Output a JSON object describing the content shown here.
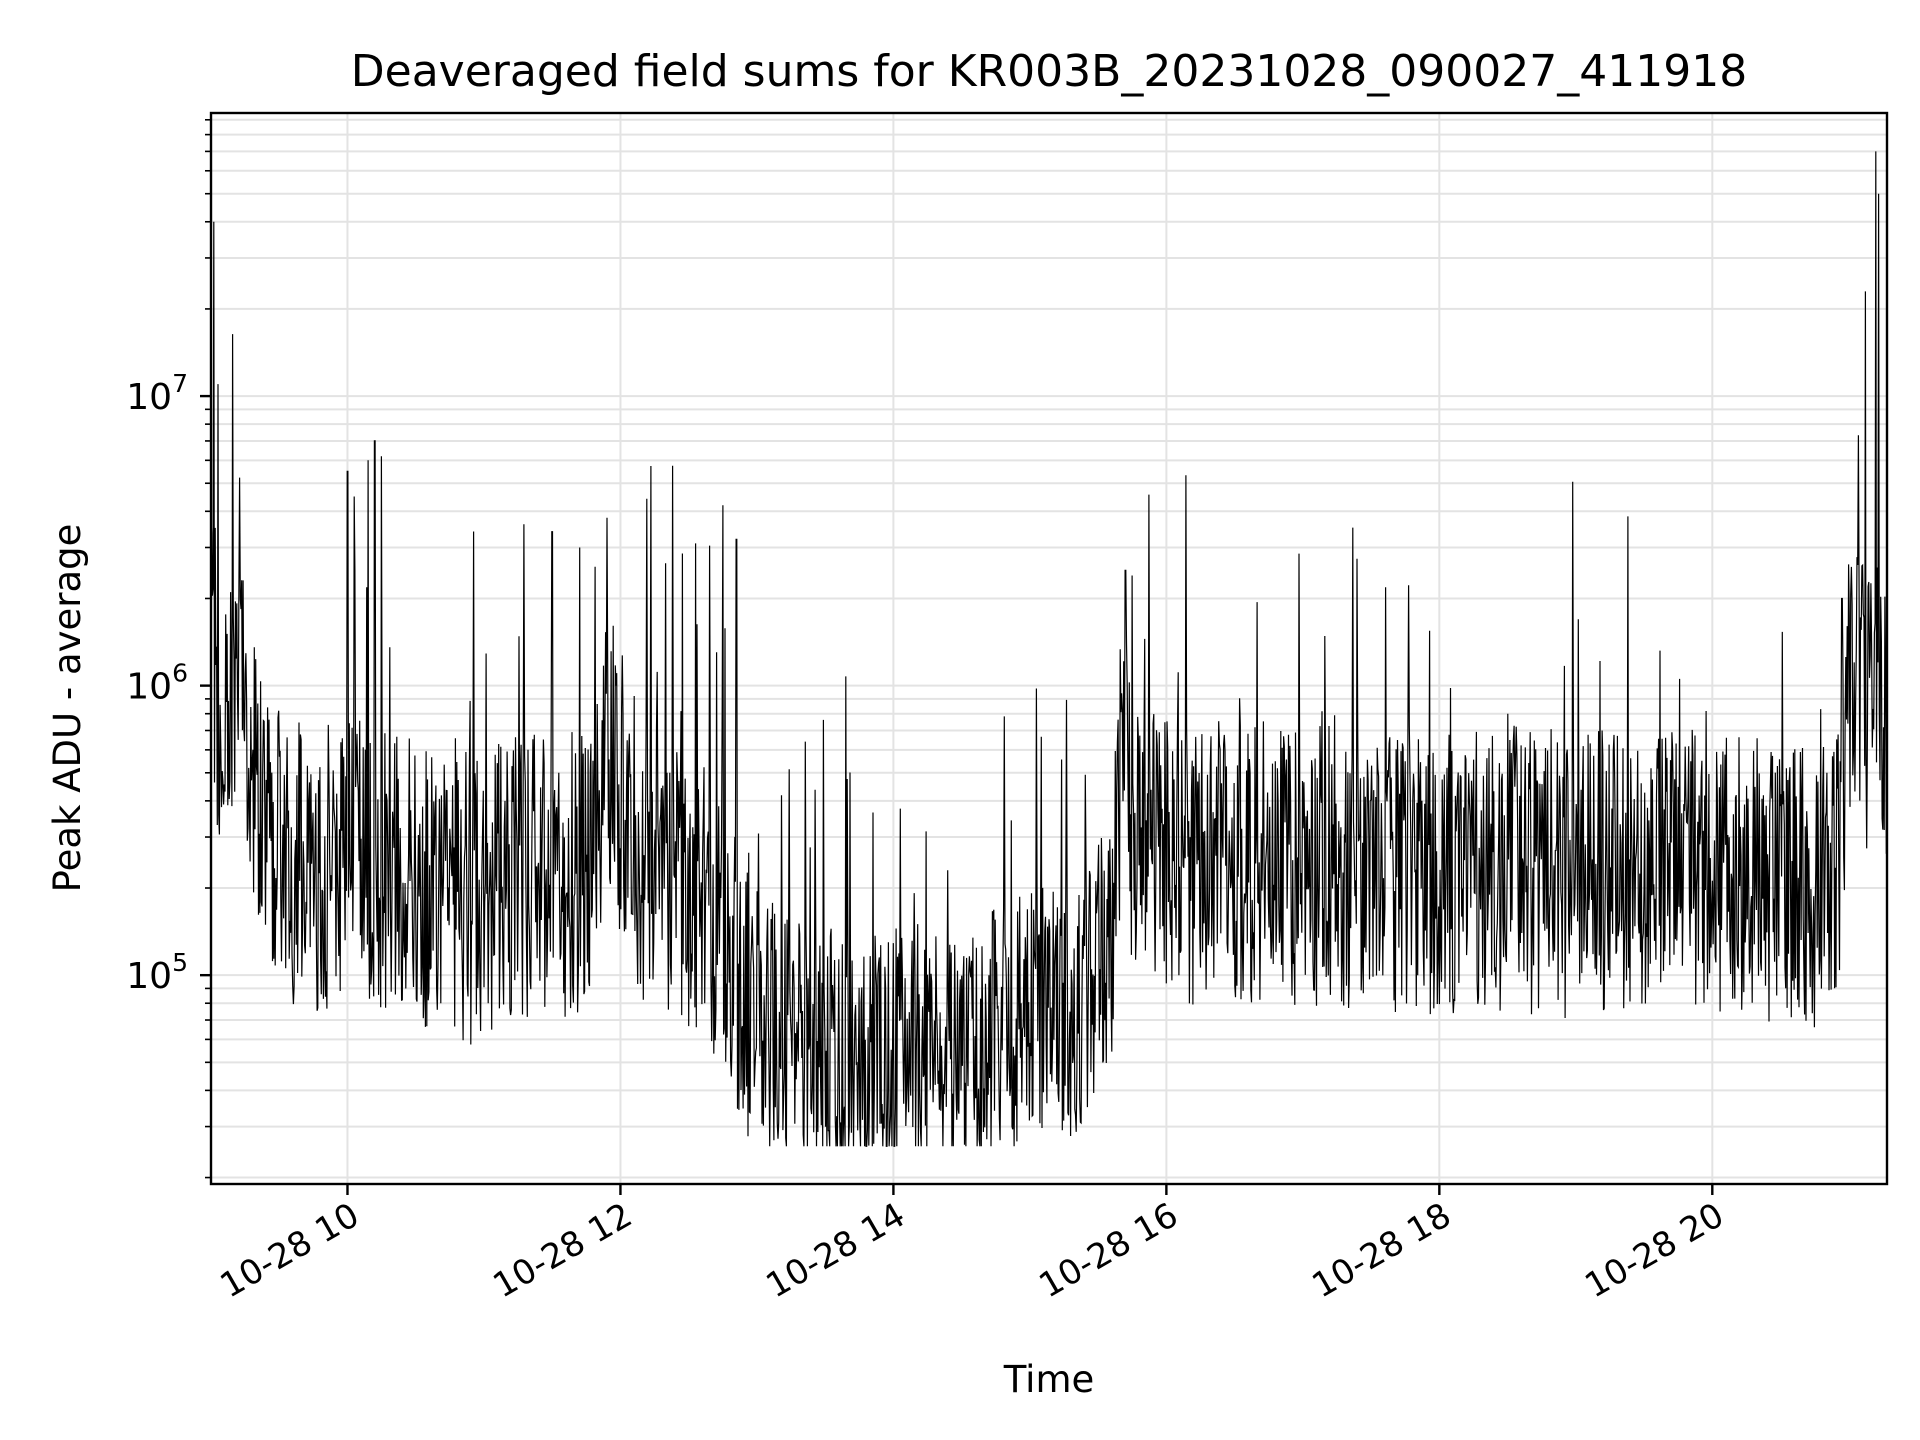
{
  "chart_data": {
    "type": "line",
    "title": "Deaveraged field sums for KR003B_20231028_090027_411918",
    "xlabel": "Time",
    "ylabel": "Peak ADU - average",
    "y_scale": "log",
    "ylim": [
      19000,
      95000000
    ],
    "xlim_hours": [
      9.0,
      21.28
    ],
    "x_tick_values_hours": [
      10,
      12,
      14,
      16,
      18,
      20
    ],
    "x_tick_labels": [
      "10-28 10",
      "10-28 12",
      "10-28 14",
      "10-28 16",
      "10-28 18",
      "10-28 20"
    ],
    "y_ticks": [
      {
        "value": 100000,
        "base": "10",
        "exp": "5"
      },
      {
        "value": 1000000,
        "base": "10",
        "exp": "6"
      },
      {
        "value": 10000000,
        "base": "10",
        "exp": "7"
      }
    ],
    "grid": true,
    "legend": "none",
    "line_color": "#000000",
    "series": [
      {
        "x_hours": [
          9.0,
          9.05,
          9.12,
          9.25,
          9.4,
          9.6,
          9.8,
          10.0,
          10.1,
          10.2,
          10.35,
          10.6,
          10.9,
          11.2,
          11.5,
          11.8,
          11.9,
          12.1,
          12.4,
          12.7,
          12.85,
          13.0,
          13.3,
          13.6,
          13.9,
          14.2,
          14.5,
          14.8,
          15.1,
          15.4,
          15.6,
          15.7,
          15.75,
          15.85,
          16.2,
          16.6,
          17.0,
          17.4,
          17.8,
          18.2,
          18.6,
          19.0,
          19.4,
          19.8,
          20.2,
          20.6,
          20.8,
          20.92,
          21.0,
          21.1,
          21.15,
          21.2,
          21.28
        ],
        "y": [
          2000000,
          1100000,
          1000000,
          800000,
          400000,
          280000,
          260000,
          280000,
          300000,
          280000,
          250000,
          220000,
          200000,
          240000,
          250000,
          260000,
          800000,
          300000,
          250000,
          180000,
          120000,
          80000,
          60000,
          55000,
          60000,
          60000,
          60000,
          70000,
          80000,
          90000,
          150000,
          1000000,
          350000,
          300000,
          280000,
          270000,
          270000,
          260000,
          260000,
          260000,
          260000,
          250000,
          250000,
          250000,
          250000,
          230000,
          220000,
          280000,
          1000000,
          1100000,
          900000,
          1000000,
          900000
        ]
      }
    ]
  }
}
